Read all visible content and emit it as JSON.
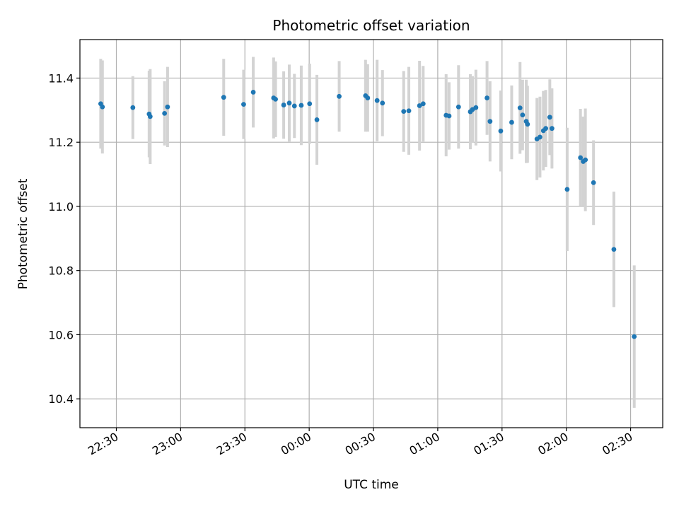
{
  "chart_data": {
    "type": "scatter",
    "title": "Photometric offset variation",
    "xlabel": "UTC time",
    "ylabel": "Photometric offset",
    "x_unit": "minutes relative to 00:00 UTC",
    "xlim": [
      -107,
      165
    ],
    "ylim": [
      10.31,
      11.52
    ],
    "grid": true,
    "x_ticks": [
      {
        "value": -90,
        "label": "22:30"
      },
      {
        "value": -60,
        "label": "23:00"
      },
      {
        "value": -30,
        "label": "23:30"
      },
      {
        "value": 0,
        "label": "00:00"
      },
      {
        "value": 30,
        "label": "00:30"
      },
      {
        "value": 60,
        "label": "01:00"
      },
      {
        "value": 90,
        "label": "01:30"
      },
      {
        "value": 120,
        "label": "02:00"
      },
      {
        "value": 150,
        "label": "02:30"
      }
    ],
    "y_ticks": [
      {
        "value": 10.4,
        "label": "10.4"
      },
      {
        "value": 10.6,
        "label": "10.6"
      },
      {
        "value": 10.8,
        "label": "10.8"
      },
      {
        "value": 11.0,
        "label": "11.0"
      },
      {
        "value": 11.2,
        "label": "11.2"
      },
      {
        "value": 11.4,
        "label": "11.4"
      }
    ],
    "colors": {
      "point": "#1f77b4",
      "errorbar": "#d3d3d3",
      "grid": "#b0b0b0"
    },
    "points": [
      {
        "x": -97.3,
        "y": 11.32,
        "err": 0.14
      },
      {
        "x": -96.5,
        "y": 11.31,
        "err": 0.145
      },
      {
        "x": -82.3,
        "y": 11.308,
        "err": 0.098
      },
      {
        "x": -74.7,
        "y": 11.288,
        "err": 0.135
      },
      {
        "x": -74.2,
        "y": 11.28,
        "err": 0.148
      },
      {
        "x": -67.5,
        "y": 11.29,
        "err": 0.1
      },
      {
        "x": -66.1,
        "y": 11.31,
        "err": 0.125
      },
      {
        "x": -39.9,
        "y": 11.34,
        "err": 0.12
      },
      {
        "x": -30.6,
        "y": 11.318,
        "err": 0.108
      },
      {
        "x": -26.1,
        "y": 11.356,
        "err": 0.11
      },
      {
        "x": -16.6,
        "y": 11.338,
        "err": 0.126
      },
      {
        "x": -15.7,
        "y": 11.334,
        "err": 0.118
      },
      {
        "x": -11.9,
        "y": 11.316,
        "err": 0.105
      },
      {
        "x": -9.3,
        "y": 11.322,
        "err": 0.12
      },
      {
        "x": -6.9,
        "y": 11.313,
        "err": 0.1
      },
      {
        "x": -3.7,
        "y": 11.315,
        "err": 0.124
      },
      {
        "x": 0.2,
        "y": 11.32,
        "err": 0.125
      },
      {
        "x": 3.6,
        "y": 11.27,
        "err": 0.14
      },
      {
        "x": 14.0,
        "y": 11.343,
        "err": 0.11
      },
      {
        "x": 26.3,
        "y": 11.345,
        "err": 0.112
      },
      {
        "x": 27.3,
        "y": 11.338,
        "err": 0.105
      },
      {
        "x": 31.7,
        "y": 11.33,
        "err": 0.127
      },
      {
        "x": 34.2,
        "y": 11.322,
        "err": 0.103
      },
      {
        "x": 44.1,
        "y": 11.296,
        "err": 0.126
      },
      {
        "x": 46.5,
        "y": 11.298,
        "err": 0.137
      },
      {
        "x": 51.5,
        "y": 11.314,
        "err": 0.14
      },
      {
        "x": 53.2,
        "y": 11.32,
        "err": 0.118
      },
      {
        "x": 63.9,
        "y": 11.284,
        "err": 0.128
      },
      {
        "x": 65.3,
        "y": 11.282,
        "err": 0.105
      },
      {
        "x": 69.7,
        "y": 11.31,
        "err": 0.13
      },
      {
        "x": 75.2,
        "y": 11.295,
        "err": 0.117
      },
      {
        "x": 76.2,
        "y": 11.302,
        "err": 0.104
      },
      {
        "x": 77.8,
        "y": 11.308,
        "err": 0.118
      },
      {
        "x": 83.0,
        "y": 11.338,
        "err": 0.115
      },
      {
        "x": 84.4,
        "y": 11.265,
        "err": 0.125
      },
      {
        "x": 89.4,
        "y": 11.235,
        "err": 0.126
      },
      {
        "x": 94.5,
        "y": 11.262,
        "err": 0.115
      },
      {
        "x": 98.4,
        "y": 11.307,
        "err": 0.143
      },
      {
        "x": 99.6,
        "y": 11.285,
        "err": 0.11
      },
      {
        "x": 101.3,
        "y": 11.265,
        "err": 0.13
      },
      {
        "x": 101.9,
        "y": 11.256,
        "err": 0.12
      },
      {
        "x": 106.3,
        "y": 11.21,
        "err": 0.128
      },
      {
        "x": 107.7,
        "y": 11.216,
        "err": 0.126
      },
      {
        "x": 109.3,
        "y": 11.236,
        "err": 0.124
      },
      {
        "x": 110.4,
        "y": 11.243,
        "err": 0.12
      },
      {
        "x": 112.3,
        "y": 11.278,
        "err": 0.118
      },
      {
        "x": 113.3,
        "y": 11.243,
        "err": 0.125
      },
      {
        "x": 120.4,
        "y": 11.053,
        "err": 0.192
      },
      {
        "x": 126.6,
        "y": 11.152,
        "err": 0.152
      },
      {
        "x": 127.9,
        "y": 11.14,
        "err": 0.14
      },
      {
        "x": 128.9,
        "y": 11.145,
        "err": 0.16
      },
      {
        "x": 132.7,
        "y": 11.074,
        "err": 0.132
      },
      {
        "x": 142.2,
        "y": 10.866,
        "err": 0.18
      },
      {
        "x": 151.7,
        "y": 10.594,
        "err": 0.222
      }
    ]
  }
}
